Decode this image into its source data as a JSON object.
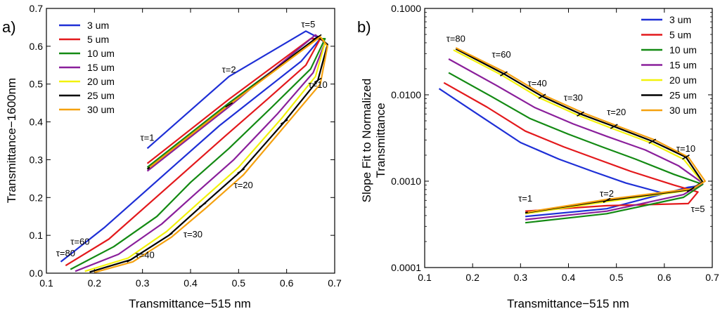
{
  "colors": {
    "3 um": "#1e2fd6",
    "5 um": "#e3191c",
    "10 um": "#138a13",
    "15 um": "#8a1f9b",
    "20 um": "#f2f20a",
    "25 um": "#000000",
    "30 um": "#f5a10f"
  },
  "chart_data": [
    {
      "panel": "a)",
      "type": "line",
      "xlabel": "Transmittance−515 nm",
      "ylabel": "Transmittance−1600nm",
      "xlim": [
        0.1,
        0.7
      ],
      "ylim": [
        0.0,
        0.7
      ],
      "xticks": [
        "0.1",
        "0.2",
        "0.3",
        "0.4",
        "0.5",
        "0.6",
        "0.7"
      ],
      "yticks": [
        "0.0",
        "0.1",
        "0.2",
        "0.3",
        "0.4",
        "0.5",
        "0.6",
        "0.7"
      ],
      "legend": [
        "3 um",
        "5 um",
        "10 um",
        "15 um",
        "20 um",
        "25 um",
        "30 um"
      ],
      "legend_position": "top-left",
      "series": [
        {
          "name": "3 um",
          "x": [
            0.31,
            0.48,
            0.64,
            0.67,
            0.63,
            0.55,
            0.46,
            0.38,
            0.3,
            0.22,
            0.13
          ],
          "y": [
            0.33,
            0.52,
            0.64,
            0.62,
            0.56,
            0.48,
            0.39,
            0.3,
            0.21,
            0.12,
            0.03
          ]
        },
        {
          "name": "5 um",
          "x": [
            0.31,
            0.48,
            0.65,
            0.67,
            0.64,
            0.56,
            0.47,
            0.39,
            0.31,
            0.23,
            0.14
          ],
          "y": [
            0.29,
            0.46,
            0.62,
            0.62,
            0.55,
            0.46,
            0.36,
            0.27,
            0.18,
            0.09,
            0.02
          ]
        },
        {
          "name": "10 um",
          "x": [
            0.31,
            0.48,
            0.66,
            0.68,
            0.65,
            0.57,
            0.48,
            0.4,
            0.33,
            0.24,
            0.15
          ],
          "y": [
            0.28,
            0.45,
            0.62,
            0.62,
            0.54,
            0.44,
            0.33,
            0.24,
            0.15,
            0.07,
            0.01
          ]
        },
        {
          "name": "15 um",
          "x": [
            0.31,
            0.48,
            0.66,
            0.68,
            0.655,
            0.58,
            0.49,
            0.41,
            0.34,
            0.25,
            0.16
          ],
          "y": [
            0.27,
            0.44,
            0.63,
            0.61,
            0.53,
            0.42,
            0.3,
            0.21,
            0.13,
            0.05,
            0.005
          ]
        },
        {
          "name": "20 um",
          "x": [
            0.31,
            0.48,
            0.67,
            0.68,
            0.66,
            0.59,
            0.5,
            0.42,
            0.35,
            0.27,
            0.18
          ],
          "y": [
            0.275,
            0.445,
            0.625,
            0.61,
            0.52,
            0.41,
            0.28,
            0.19,
            0.11,
            0.04,
            0.005
          ]
        },
        {
          "name": "25 um",
          "x": [
            0.31,
            0.48,
            0.665,
            0.685,
            0.665,
            0.595,
            0.505,
            0.425,
            0.355,
            0.275,
            0.19
          ],
          "y": [
            0.275,
            0.445,
            0.625,
            0.605,
            0.51,
            0.4,
            0.27,
            0.18,
            0.1,
            0.035,
            0.003
          ]
        },
        {
          "name": "30 um",
          "x": [
            0.315,
            0.485,
            0.67,
            0.685,
            0.67,
            0.6,
            0.51,
            0.43,
            0.36,
            0.28,
            0.2
          ],
          "y": [
            0.28,
            0.45,
            0.625,
            0.6,
            0.5,
            0.395,
            0.26,
            0.17,
            0.095,
            0.03,
            0.002
          ]
        }
      ],
      "annotations": [
        {
          "text": "τ=1",
          "x": 0.31,
          "y": 0.35
        },
        {
          "text": "τ=2",
          "x": 0.48,
          "y": 0.53
        },
        {
          "text": "τ=5",
          "x": 0.645,
          "y": 0.65
        },
        {
          "text": "τ=10",
          "x": 0.665,
          "y": 0.49
        },
        {
          "text": "τ=20",
          "x": 0.51,
          "y": 0.225
        },
        {
          "text": "τ=30",
          "x": 0.405,
          "y": 0.095
        },
        {
          "text": "τ=40",
          "x": 0.305,
          "y": 0.04
        },
        {
          "text": "τ=60",
          "x": 0.17,
          "y": 0.075
        },
        {
          "text": "τ=80",
          "x": 0.14,
          "y": 0.045
        }
      ]
    },
    {
      "panel": "b)",
      "type": "line",
      "yscale": "log",
      "xlabel": "Transmittance−515 nm",
      "ylabel": "Slope Fit to Normalized Transmittance",
      "ylabel_lines": [
        "Slope Fit to Normalized",
        "Transmittance"
      ],
      "xlim": [
        0.1,
        0.7
      ],
      "ylim": [
        0.0001,
        0.1
      ],
      "xticks": [
        "0.1",
        "0.2",
        "0.3",
        "0.4",
        "0.5",
        "0.6",
        "0.7"
      ],
      "yticks": [
        "0.0001",
        "0.0010",
        "0.0100",
        "0.1000"
      ],
      "legend": [
        "3 um",
        "5 um",
        "10 um",
        "15 um",
        "20 um",
        "25 um",
        "30 um"
      ],
      "legend_position": "top-right",
      "series": [
        {
          "name": "3 um",
          "x": [
            0.31,
            0.48,
            0.65,
            0.67,
            0.6,
            0.52,
            0.45,
            0.38,
            0.3,
            0.22,
            0.13
          ],
          "y": [
            0.00039,
            0.00048,
            0.00085,
            0.00088,
            0.00072,
            0.00095,
            0.0013,
            0.0018,
            0.0028,
            0.0055,
            0.0118
          ]
        },
        {
          "name": "5 um",
          "x": [
            0.31,
            0.48,
            0.65,
            0.67,
            0.62,
            0.53,
            0.46,
            0.39,
            0.31,
            0.23,
            0.14
          ],
          "y": [
            0.00045,
            0.00052,
            0.00055,
            0.00075,
            0.0009,
            0.0013,
            0.0018,
            0.0025,
            0.0038,
            0.0072,
            0.0138
          ]
        },
        {
          "name": "10 um",
          "x": [
            0.31,
            0.48,
            0.64,
            0.68,
            0.62,
            0.54,
            0.47,
            0.4,
            0.32,
            0.24,
            0.15
          ],
          "y": [
            0.00033,
            0.00042,
            0.00065,
            0.00092,
            0.0012,
            0.0018,
            0.0025,
            0.0035,
            0.0053,
            0.0095,
            0.018
          ]
        },
        {
          "name": "15 um",
          "x": [
            0.31,
            0.48,
            0.64,
            0.68,
            0.63,
            0.56,
            0.48,
            0.41,
            0.33,
            0.25,
            0.15
          ],
          "y": [
            0.00036,
            0.00045,
            0.0007,
            0.00095,
            0.0015,
            0.0023,
            0.0033,
            0.0046,
            0.0071,
            0.0128,
            0.026
          ]
        },
        {
          "name": "20 um",
          "x": [
            0.31,
            0.48,
            0.65,
            0.68,
            0.64,
            0.57,
            0.49,
            0.42,
            0.34,
            0.26,
            0.16
          ],
          "y": [
            0.00042,
            0.00058,
            0.00078,
            0.00096,
            0.0018,
            0.0028,
            0.0041,
            0.0058,
            0.0092,
            0.017,
            0.033
          ]
        },
        {
          "name": "25 um",
          "x": [
            0.31,
            0.48,
            0.655,
            0.68,
            0.645,
            0.575,
            0.495,
            0.425,
            0.345,
            0.265,
            0.165
          ],
          "y": [
            0.00043,
            0.0006,
            0.0008,
            0.00098,
            0.0019,
            0.0029,
            0.0043,
            0.006,
            0.0096,
            0.0175,
            0.034
          ]
        },
        {
          "name": "30 um",
          "x": [
            0.315,
            0.485,
            0.66,
            0.685,
            0.65,
            0.58,
            0.5,
            0.43,
            0.35,
            0.27,
            0.165
          ],
          "y": [
            0.00044,
            0.00062,
            0.00082,
            0.001,
            0.0019,
            0.003,
            0.0044,
            0.0062,
            0.0098,
            0.018,
            0.035
          ]
        }
      ],
      "annotations": [
        {
          "text": "τ=1",
          "x": 0.31,
          "y": 0.00058
        },
        {
          "text": "τ=2",
          "x": 0.48,
          "y": 0.00066
        },
        {
          "text": "τ=5",
          "x": 0.67,
          "y": 0.00044
        },
        {
          "text": "τ=10",
          "x": 0.645,
          "y": 0.0022
        },
        {
          "text": "τ=20",
          "x": 0.5,
          "y": 0.0058
        },
        {
          "text": "τ=30",
          "x": 0.41,
          "y": 0.0085
        },
        {
          "text": "τ=40",
          "x": 0.335,
          "y": 0.0125
        },
        {
          "text": "τ=60",
          "x": 0.26,
          "y": 0.027
        },
        {
          "text": "τ=80",
          "x": 0.165,
          "y": 0.041
        }
      ]
    }
  ]
}
